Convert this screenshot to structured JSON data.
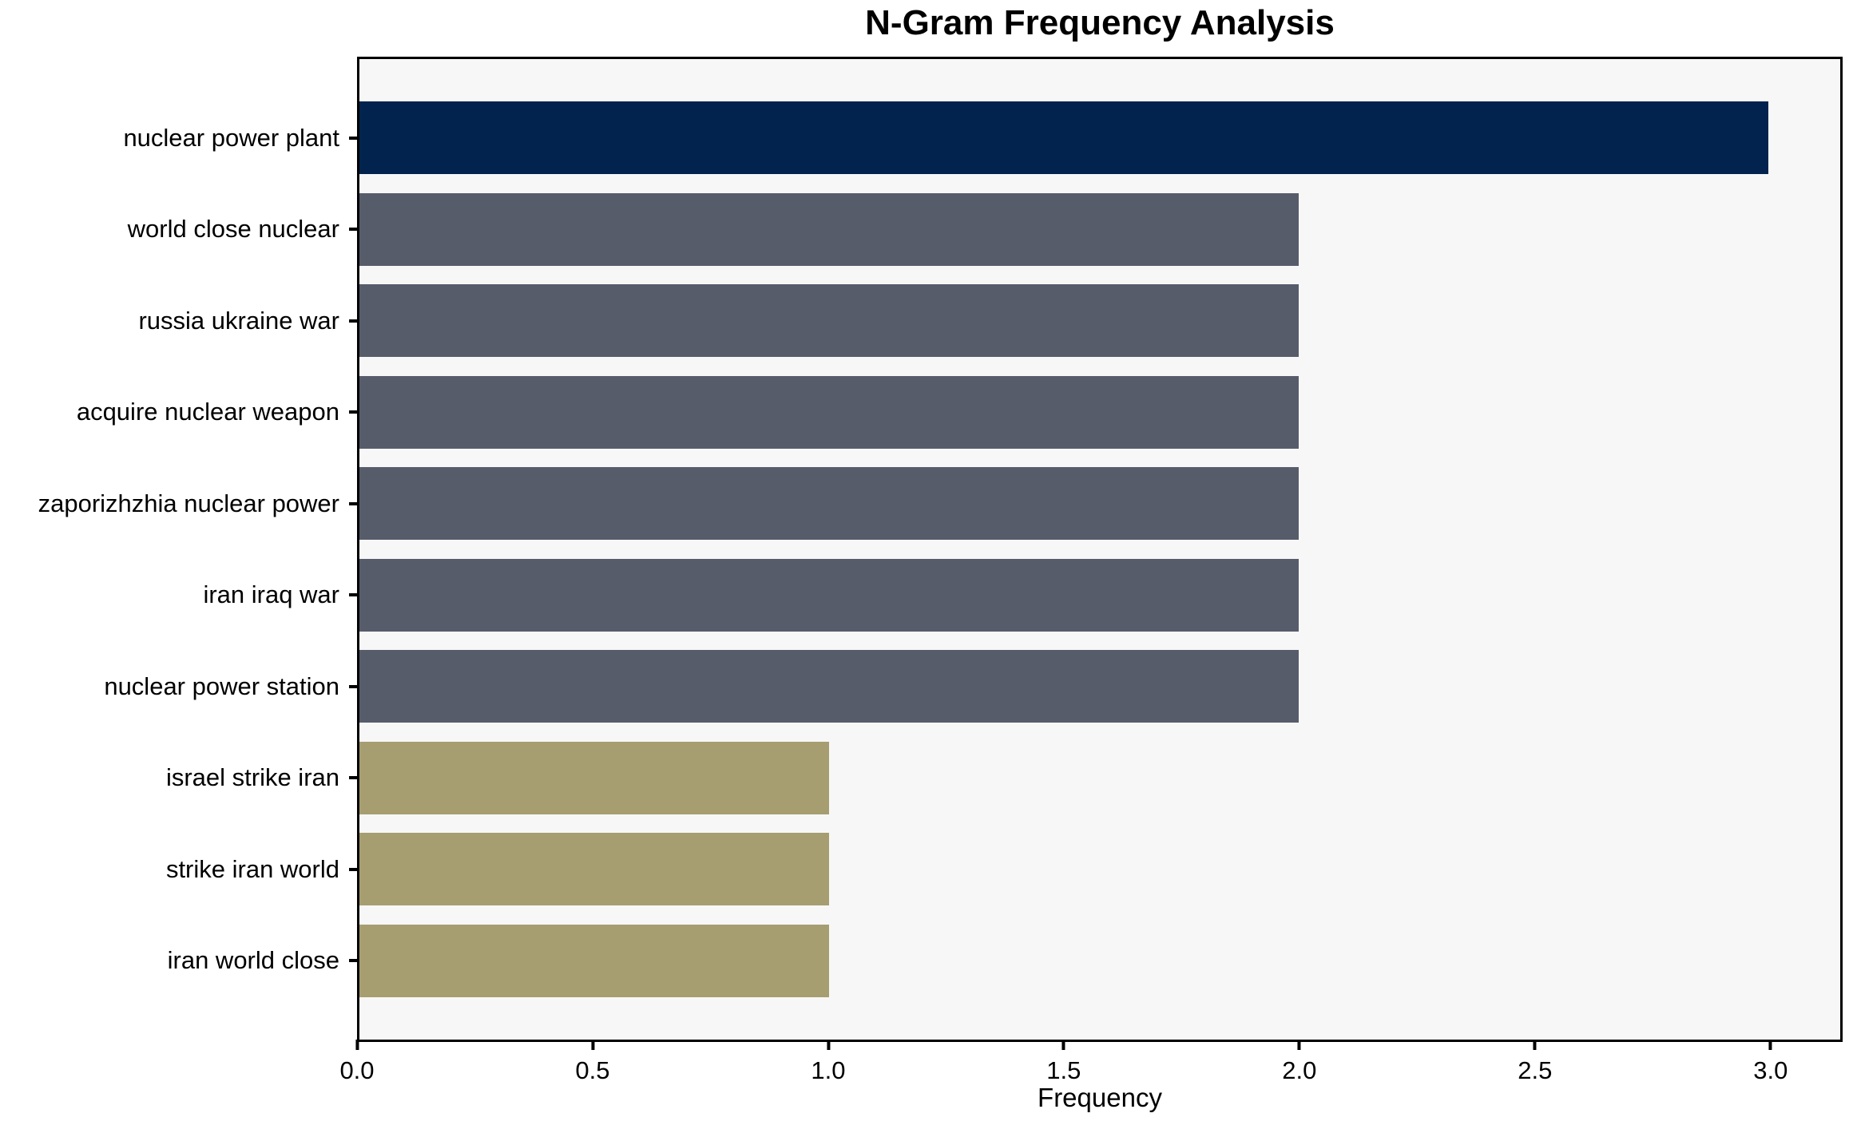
{
  "chart_data": {
    "type": "bar",
    "orientation": "horizontal",
    "title": "N-Gram Frequency Analysis",
    "xlabel": "Frequency",
    "ylabel": "",
    "categories": [
      "nuclear power plant",
      "world close nuclear",
      "russia ukraine war",
      "acquire nuclear weapon",
      "zaporizhzhia nuclear power",
      "iran iraq war",
      "nuclear power station",
      "israel strike iran",
      "strike iran world",
      "iran world close"
    ],
    "values": [
      3,
      2,
      2,
      2,
      2,
      2,
      2,
      1,
      1,
      1
    ],
    "bar_colors": [
      "#02234D",
      "#575C6B",
      "#575C6B",
      "#575C6B",
      "#575C6B",
      "#575C6B",
      "#575C6B",
      "#A69E71",
      "#A69E71",
      "#A69E71"
    ],
    "xticks": [
      {
        "value": 0.0,
        "label": "0.0"
      },
      {
        "value": 0.5,
        "label": "0.5"
      },
      {
        "value": 1.0,
        "label": "1.0"
      },
      {
        "value": 1.5,
        "label": "1.5"
      },
      {
        "value": 2.0,
        "label": "2.0"
      },
      {
        "value": 2.5,
        "label": "2.5"
      },
      {
        "value": 3.0,
        "label": "3.0"
      }
    ],
    "xlim": [
      0,
      3.153
    ],
    "grid": false,
    "legend": null,
    "colors": {
      "plot_background": "#F7F7F7",
      "figure_background": "#FFFFFF",
      "axis": "#000000",
      "text": "#000000"
    }
  }
}
